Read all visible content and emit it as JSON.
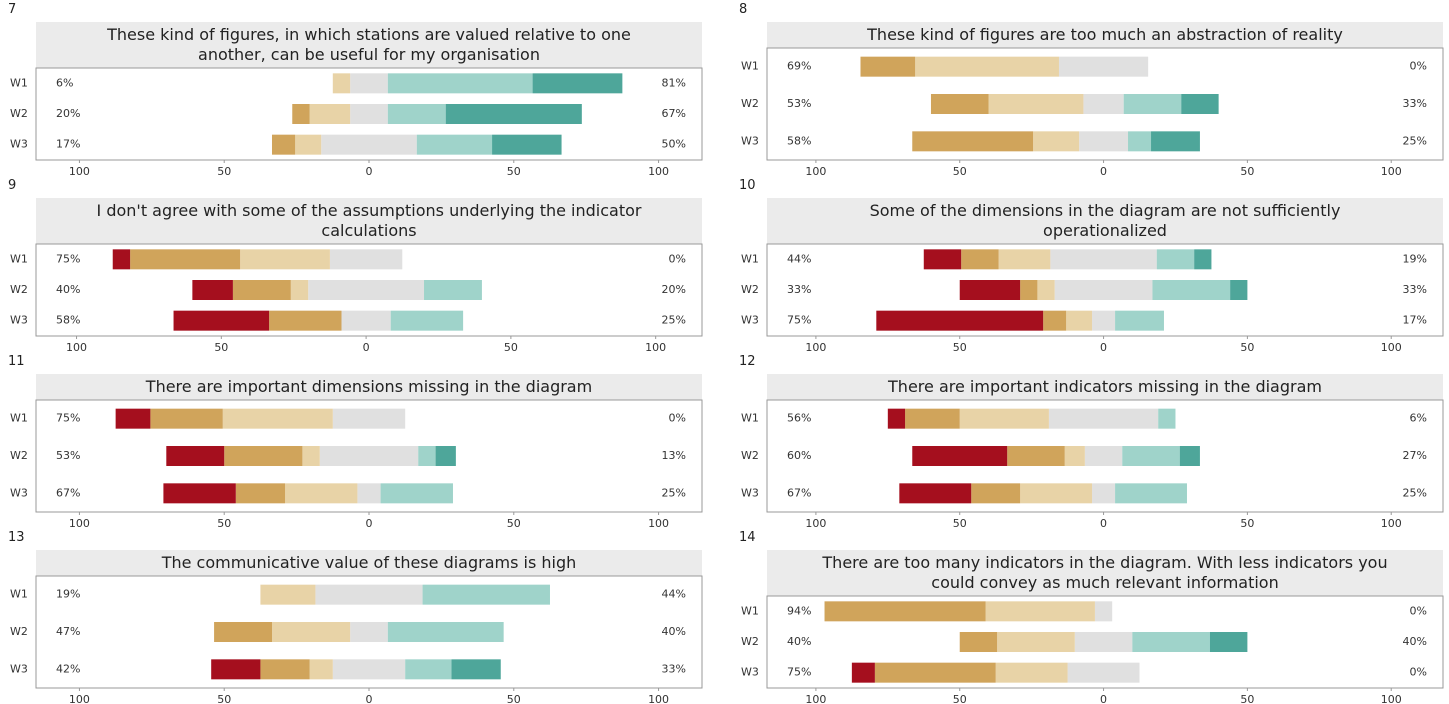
{
  "chart_data": [
    {
      "type": "diverging-bar",
      "label": "7",
      "title": "These kind of figures, in which stations are valued relative to one another, can be useful for my organisation",
      "categories": [
        "W1",
        "W2",
        "W3"
      ],
      "left_labels": [
        "6%",
        "20%",
        "17%"
      ],
      "right_labels": [
        "81%",
        "67%",
        "50%"
      ],
      "series": [
        {
          "color": "#a50f1e",
          "values": [
            0,
            0,
            0
          ]
        },
        {
          "color": "#d0a45b",
          "values": [
            0,
            6,
            8
          ]
        },
        {
          "color": "#e8d3a7",
          "values": [
            6,
            14,
            9
          ]
        },
        {
          "color": "#e0e0e0",
          "values": [
            13,
            13,
            33
          ]
        },
        {
          "color": "#9fd3ca",
          "values": [
            50,
            20,
            26
          ]
        },
        {
          "color": "#4ea69a",
          "values": [
            31,
            47,
            24
          ]
        }
      ],
      "xlim": [
        -115,
        115
      ],
      "xticks": [
        {
          "value": -100,
          "label": "100"
        },
        {
          "value": -50,
          "label": "50"
        },
        0,
        50,
        100
      ]
    },
    {
      "type": "diverging-bar",
      "label": "8",
      "title": "These kind of figures are too much an abstraction of reality",
      "categories": [
        "W1",
        "W2",
        "W3"
      ],
      "left_labels": [
        "69%",
        "53%",
        "58%"
      ],
      "right_labels": [
        "0%",
        "33%",
        "25%"
      ],
      "series": [
        {
          "color": "#a50f1e",
          "values": [
            0,
            0,
            0
          ]
        },
        {
          "color": "#d0a45b",
          "values": [
            19,
            20,
            42
          ]
        },
        {
          "color": "#e8d3a7",
          "values": [
            50,
            33,
            16
          ]
        },
        {
          "color": "#e0e0e0",
          "values": [
            31,
            14,
            17
          ]
        },
        {
          "color": "#9fd3ca",
          "values": [
            0,
            20,
            8
          ]
        },
        {
          "color": "#4ea69a",
          "values": [
            0,
            13,
            17
          ]
        }
      ],
      "xlim": [
        -117,
        118
      ],
      "xticks": [
        {
          "value": -100,
          "label": "100"
        },
        {
          "value": -50,
          "label": "50"
        },
        0,
        50,
        100
      ]
    },
    {
      "type": "diverging-bar",
      "label": "9",
      "title": "I don't agree with some of the assumptions underlying the indicator calculations",
      "categories": [
        "W1",
        "W2",
        "W3"
      ],
      "left_labels": [
        "75%",
        "40%",
        "58%"
      ],
      "right_labels": [
        "0%",
        "20%",
        "25%"
      ],
      "series": [
        {
          "color": "#a50f1e",
          "values": [
            6,
            14,
            33
          ]
        },
        {
          "color": "#d0a45b",
          "values": [
            38,
            20,
            25
          ]
        },
        {
          "color": "#e8d3a7",
          "values": [
            31,
            6,
            0
          ]
        },
        {
          "color": "#e0e0e0",
          "values": [
            25,
            40,
            17
          ]
        },
        {
          "color": "#9fd3ca",
          "values": [
            0,
            20,
            25
          ]
        },
        {
          "color": "#4ea69a",
          "values": [
            0,
            0,
            0
          ]
        }
      ],
      "xlim": [
        -114,
        116
      ],
      "xticks": [
        {
          "value": -100,
          "label": "100"
        },
        {
          "value": -50,
          "label": "50"
        },
        0,
        50,
        100
      ]
    },
    {
      "type": "diverging-bar",
      "label": "10",
      "title": "Some of the dimensions in the diagram are not sufficiently operationalized",
      "categories": [
        "W1",
        "W2",
        "W3"
      ],
      "left_labels": [
        "44%",
        "33%",
        "75%"
      ],
      "right_labels": [
        "19%",
        "33%",
        "17%"
      ],
      "series": [
        {
          "color": "#a50f1e",
          "values": [
            13,
            21,
            58
          ]
        },
        {
          "color": "#d0a45b",
          "values": [
            13,
            6,
            8
          ]
        },
        {
          "color": "#e8d3a7",
          "values": [
            18,
            6,
            9
          ]
        },
        {
          "color": "#e0e0e0",
          "values": [
            37,
            34,
            8
          ]
        },
        {
          "color": "#9fd3ca",
          "values": [
            13,
            27,
            17
          ]
        },
        {
          "color": "#4ea69a",
          "values": [
            6,
            6,
            0
          ]
        }
      ],
      "xlim": [
        -117,
        118
      ],
      "xticks": [
        {
          "value": -100,
          "label": "100"
        },
        {
          "value": -50,
          "label": "50"
        },
        0,
        50,
        100
      ]
    },
    {
      "type": "diverging-bar",
      "label": "11",
      "title": "There are important dimensions missing in the diagram",
      "categories": [
        "W1",
        "W2",
        "W3"
      ],
      "left_labels": [
        "75%",
        "53%",
        "67%"
      ],
      "right_labels": [
        "0%",
        "13%",
        "25%"
      ],
      "series": [
        {
          "color": "#a50f1e",
          "values": [
            12,
            20,
            25
          ]
        },
        {
          "color": "#d0a45b",
          "values": [
            25,
            27,
            17
          ]
        },
        {
          "color": "#e8d3a7",
          "values": [
            38,
            6,
            25
          ]
        },
        {
          "color": "#e0e0e0",
          "values": [
            25,
            34,
            8
          ]
        },
        {
          "color": "#9fd3ca",
          "values": [
            0,
            6,
            25
          ]
        },
        {
          "color": "#4ea69a",
          "values": [
            0,
            7,
            0
          ]
        }
      ],
      "xlim": [
        -115,
        115
      ],
      "xticks": [
        {
          "value": -100,
          "label": "100"
        },
        {
          "value": -50,
          "label": "50"
        },
        0,
        50,
        100
      ]
    },
    {
      "type": "diverging-bar",
      "label": "12",
      "title": "There are important indicators missing in the diagram",
      "categories": [
        "W1",
        "W2",
        "W3"
      ],
      "left_labels": [
        "56%",
        "60%",
        "67%"
      ],
      "right_labels": [
        "6%",
        "27%",
        "25%"
      ],
      "series": [
        {
          "color": "#a50f1e",
          "values": [
            6,
            33,
            25
          ]
        },
        {
          "color": "#d0a45b",
          "values": [
            19,
            20,
            17
          ]
        },
        {
          "color": "#e8d3a7",
          "values": [
            31,
            7,
            25
          ]
        },
        {
          "color": "#e0e0e0",
          "values": [
            38,
            13,
            8
          ]
        },
        {
          "color": "#9fd3ca",
          "values": [
            6,
            20,
            25
          ]
        },
        {
          "color": "#4ea69a",
          "values": [
            0,
            7,
            0
          ]
        }
      ],
      "xlim": [
        -117,
        118
      ],
      "xticks": [
        {
          "value": -100,
          "label": "100"
        },
        {
          "value": -50,
          "label": "50"
        },
        0,
        50,
        100
      ]
    },
    {
      "type": "diverging-bar",
      "label": "13",
      "title": "The communicative value of these diagrams is high",
      "categories": [
        "W1",
        "W2",
        "W3"
      ],
      "left_labels": [
        "19%",
        "47%",
        "42%"
      ],
      "right_labels": [
        "44%",
        "40%",
        "33%"
      ],
      "series": [
        {
          "color": "#a50f1e",
          "values": [
            0,
            0,
            17
          ]
        },
        {
          "color": "#d0a45b",
          "values": [
            0,
            20,
            17
          ]
        },
        {
          "color": "#e8d3a7",
          "values": [
            19,
            27,
            8
          ]
        },
        {
          "color": "#e0e0e0",
          "values": [
            37,
            13,
            25
          ]
        },
        {
          "color": "#9fd3ca",
          "values": [
            44,
            40,
            16
          ]
        },
        {
          "color": "#4ea69a",
          "values": [
            0,
            0,
            17
          ]
        }
      ],
      "xlim": [
        -115,
        115
      ],
      "xticks": [
        {
          "value": -100,
          "label": "100"
        },
        {
          "value": -50,
          "label": "50"
        },
        0,
        50,
        100
      ]
    },
    {
      "type": "diverging-bar",
      "label": "14",
      "title": "There are too many indicators in the diagram. With less indicators you could convey as much relevant information",
      "categories": [
        "W1",
        "W2",
        "W3"
      ],
      "left_labels": [
        "94%",
        "40%",
        "75%"
      ],
      "right_labels": [
        "0%",
        "40%",
        "0%"
      ],
      "series": [
        {
          "color": "#a50f1e",
          "values": [
            0,
            0,
            8
          ]
        },
        {
          "color": "#d0a45b",
          "values": [
            56,
            13,
            42
          ]
        },
        {
          "color": "#e8d3a7",
          "values": [
            38,
            27,
            25
          ]
        },
        {
          "color": "#e0e0e0",
          "values": [
            6,
            20,
            25
          ]
        },
        {
          "color": "#9fd3ca",
          "values": [
            0,
            27,
            0
          ]
        },
        {
          "color": "#4ea69a",
          "values": [
            0,
            13,
            0
          ]
        }
      ],
      "xlim": [
        -117,
        118
      ],
      "xticks": [
        {
          "value": -100,
          "label": "100"
        },
        {
          "value": -50,
          "label": "50"
        },
        0,
        50,
        100
      ]
    }
  ]
}
